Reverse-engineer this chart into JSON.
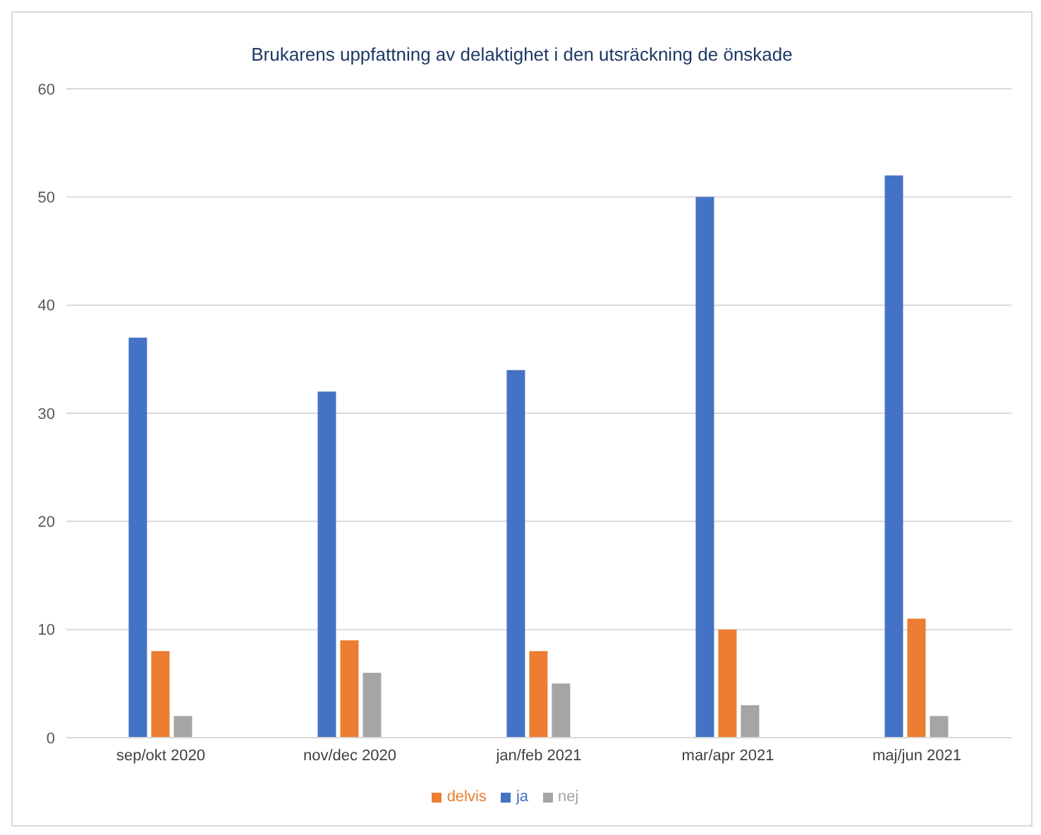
{
  "chart_data": {
    "type": "bar",
    "title": "Brukarens uppfattning av  delaktighet i den utsräckning de önskade",
    "categories": [
      "sep/okt 2020",
      "nov/dec 2020",
      "jan/feb 2021",
      "mar/apr 2021",
      "maj/jun 2021"
    ],
    "series": [
      {
        "name": "ja",
        "color": "#4472c4",
        "values": [
          37,
          32,
          34,
          50,
          52
        ]
      },
      {
        "name": "delvis",
        "color": "#ed7d31",
        "values": [
          8,
          9,
          8,
          10,
          11
        ]
      },
      {
        "name": "nej",
        "color": "#a5a5a5",
        "values": [
          2,
          6,
          5,
          3,
          2
        ]
      }
    ],
    "ylim": [
      0,
      60
    ],
    "yticks": [
      0,
      10,
      20,
      30,
      40,
      50,
      60
    ],
    "grid": "y",
    "legend": "bottom"
  }
}
